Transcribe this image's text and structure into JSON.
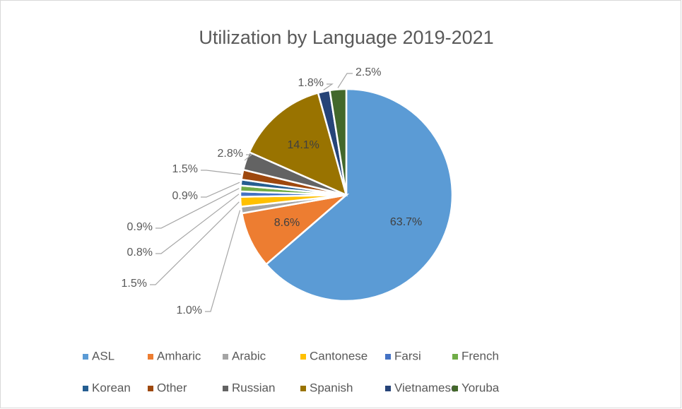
{
  "chart_data": {
    "type": "pie",
    "title": "Utilization by Language 2019-2021",
    "categories": [
      "ASL",
      "Amharic",
      "Arabic",
      "Cantonese",
      "Farsi",
      "French",
      "Korean",
      "Other",
      "Russian",
      "Spanish",
      "Vietnamese",
      "Yoruba"
    ],
    "values": [
      63.7,
      8.6,
      1.0,
      1.5,
      0.8,
      0.9,
      0.9,
      1.5,
      2.8,
      14.1,
      1.8,
      2.5
    ],
    "value_labels": [
      "63.7%",
      "8.6%",
      "1.0%",
      "1.5%",
      "0.8%",
      "0.9%",
      "0.9%",
      "1.5%",
      "2.8%",
      "14.1%",
      "1.8%",
      "2.5%"
    ],
    "colors": [
      "#5b9bd5",
      "#ed7d31",
      "#a5a5a5",
      "#ffc000",
      "#4472c4",
      "#70ad47",
      "#255e91",
      "#9e480e",
      "#636363",
      "#997300",
      "#264478",
      "#43682b"
    ],
    "legend": "bottom"
  }
}
